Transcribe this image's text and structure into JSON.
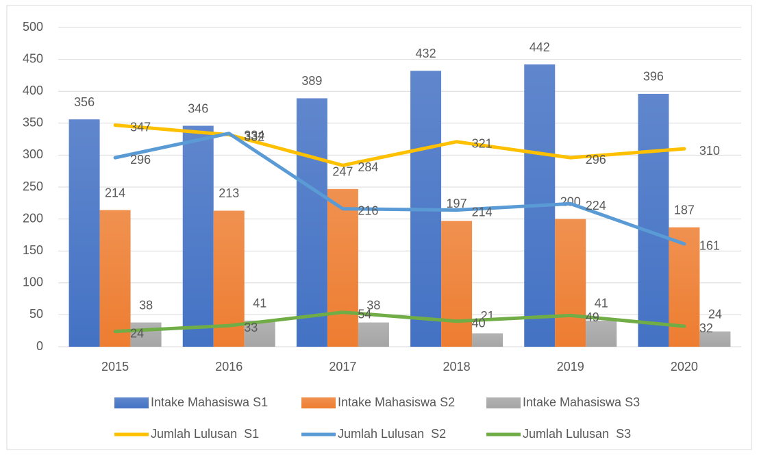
{
  "chart_data": {
    "type": "bar",
    "categories": [
      "2015",
      "2016",
      "2017",
      "2018",
      "2019",
      "2020"
    ],
    "ylim": [
      0,
      500
    ],
    "yticks": [
      0,
      50,
      100,
      150,
      200,
      250,
      300,
      350,
      400,
      450,
      500
    ],
    "grid": true,
    "series": [
      {
        "name": "Intake Mahasiswa S1",
        "type": "bar",
        "color": "#4472c4",
        "values": [
          356,
          346,
          389,
          432,
          442,
          396
        ]
      },
      {
        "name": "Intake Mahasiswa S2",
        "type": "bar",
        "color": "#ed7d31",
        "values": [
          214,
          213,
          247,
          197,
          200,
          187
        ]
      },
      {
        "name": "Intake Mahasiswa S3",
        "type": "bar",
        "color": "#a5a5a5",
        "values": [
          38,
          41,
          38,
          21,
          41,
          24
        ]
      },
      {
        "name": "Jumlah Lulusan  S1",
        "type": "line",
        "color": "#ffc000",
        "values": [
          347,
          332,
          284,
          321,
          296,
          310
        ]
      },
      {
        "name": "Jumlah Lulusan  S2",
        "type": "line",
        "color": "#5b9bd5",
        "values": [
          296,
          334,
          216,
          214,
          224,
          161
        ]
      },
      {
        "name": "Jumlah Lulusan  S3",
        "type": "line",
        "color": "#70ad47",
        "values": [
          24,
          33,
          54,
          40,
          49,
          32
        ]
      }
    ]
  }
}
